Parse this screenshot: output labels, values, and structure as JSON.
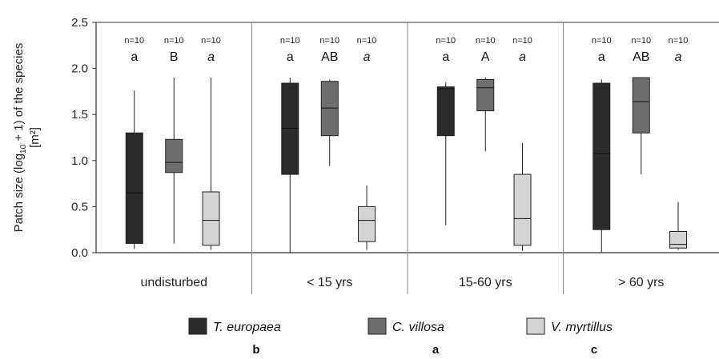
{
  "chart_data": {
    "type": "boxplot",
    "ylabel_line1": "Patch size (log",
    "ylabel_sub": "10",
    "ylabel_line1_end": " + 1) of the species",
    "ylabel_line2": "[m²]",
    "ylim": [
      0,
      2.5
    ],
    "yticks": [
      "0.0",
      "0.5",
      "1.0",
      "1.5",
      "2.0",
      "2.5"
    ],
    "ytick_values": [
      0,
      0.5,
      1.0,
      1.5,
      2.0,
      2.5
    ],
    "groups": [
      "undisturbed",
      "< 15 yrs",
      "15-60 yrs",
      "> 60 yrs"
    ],
    "series": [
      {
        "name": "T. europaea",
        "color": "#2b2b2b",
        "letter": "b"
      },
      {
        "name": "C. villosa",
        "color": "#6e6e6e",
        "letter": "a"
      },
      {
        "name": "V. myrtillus",
        "color": "#d4d4d4",
        "letter": "c"
      }
    ],
    "boxes": [
      [
        {
          "n": "n=10",
          "sig": "a",
          "italic": false,
          "min": 0.04,
          "q1": 0.1,
          "median": 0.65,
          "q3": 1.3,
          "max": 1.76
        },
        {
          "n": "n=10",
          "sig": "B",
          "italic": false,
          "min": 0.1,
          "q1": 0.87,
          "median": 0.98,
          "q3": 1.23,
          "max": 1.9
        },
        {
          "n": "n=10",
          "sig": "a",
          "italic": true,
          "min": 0.03,
          "q1": 0.08,
          "median": 0.35,
          "q3": 0.66,
          "max": 1.9
        }
      ],
      [
        {
          "n": "n=10",
          "sig": "a",
          "italic": false,
          "min": 0.0,
          "q1": 0.85,
          "median": 1.35,
          "q3": 1.84,
          "max": 1.9
        },
        {
          "n": "n=10",
          "sig": "AB",
          "italic": false,
          "min": 0.94,
          "q1": 1.27,
          "median": 1.57,
          "q3": 1.86,
          "max": 1.88
        },
        {
          "n": "n=10",
          "sig": "a",
          "italic": true,
          "min": 0.03,
          "q1": 0.12,
          "median": 0.35,
          "q3": 0.5,
          "max": 0.73
        }
      ],
      [
        {
          "n": "n=10",
          "sig": "a",
          "italic": false,
          "min": 0.3,
          "q1": 1.27,
          "median": 1.78,
          "q3": 1.8,
          "max": 1.85
        },
        {
          "n": "n=10",
          "sig": "A",
          "italic": false,
          "min": 1.1,
          "q1": 1.54,
          "median": 1.79,
          "q3": 1.88,
          "max": 1.9
        },
        {
          "n": "n=10",
          "sig": "a",
          "italic": true,
          "min": 0.02,
          "q1": 0.08,
          "median": 0.37,
          "q3": 0.85,
          "max": 1.19
        }
      ],
      [
        {
          "n": "n=10",
          "sig": "a",
          "italic": false,
          "min": 0.0,
          "q1": 0.25,
          "median": 1.08,
          "q3": 1.84,
          "max": 1.88
        },
        {
          "n": "n=10",
          "sig": "AB",
          "italic": false,
          "min": 0.85,
          "q1": 1.3,
          "median": 1.64,
          "q3": 1.9,
          "max": 1.9
        },
        {
          "n": "n=10",
          "sig": "a",
          "italic": true,
          "min": 0.03,
          "q1": 0.05,
          "median": 0.09,
          "q3": 0.23,
          "max": 0.55
        }
      ]
    ]
  }
}
